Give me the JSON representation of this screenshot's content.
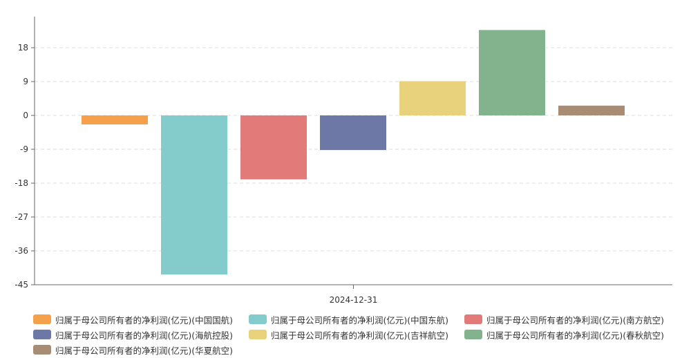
{
  "chart_data": {
    "type": "bar",
    "categories": [
      "2024-12-31"
    ],
    "ylim": [
      -45,
      27
    ],
    "yticks": [
      18,
      9,
      0,
      -9,
      -18,
      -27,
      -36,
      -45
    ],
    "grid": true,
    "legend_position": "bottom",
    "series": [
      {
        "name": "归属于母公司所有者的净利润(亿元)(中国国航)",
        "values": [
          -2.4
        ],
        "color": "#f5a04a"
      },
      {
        "name": "归属于母公司所有者的净利润(亿元)(中国东航)",
        "values": [
          -42.3
        ],
        "color": "#84cbcb"
      },
      {
        "name": "归属于母公司所有者的净利润(亿元)(南方航空)",
        "values": [
          -17.0
        ],
        "color": "#e27a7a"
      },
      {
        "name": "归属于母公司所有者的净利润(亿元)(海航控股)",
        "values": [
          -9.2
        ],
        "color": "#6d78a6"
      },
      {
        "name": "归属于母公司所有者的净利润(亿元)(吉祥航空)",
        "values": [
          9.1
        ],
        "color": "#e8d27c"
      },
      {
        "name": "归属于母公司所有者的净利润(亿元)(春秋航空)",
        "values": [
          22.7
        ],
        "color": "#83b38d"
      },
      {
        "name": "归属于母公司所有者的净利润(亿元)(华夏航空)",
        "values": [
          2.6
        ],
        "color": "#a88c74"
      }
    ]
  }
}
